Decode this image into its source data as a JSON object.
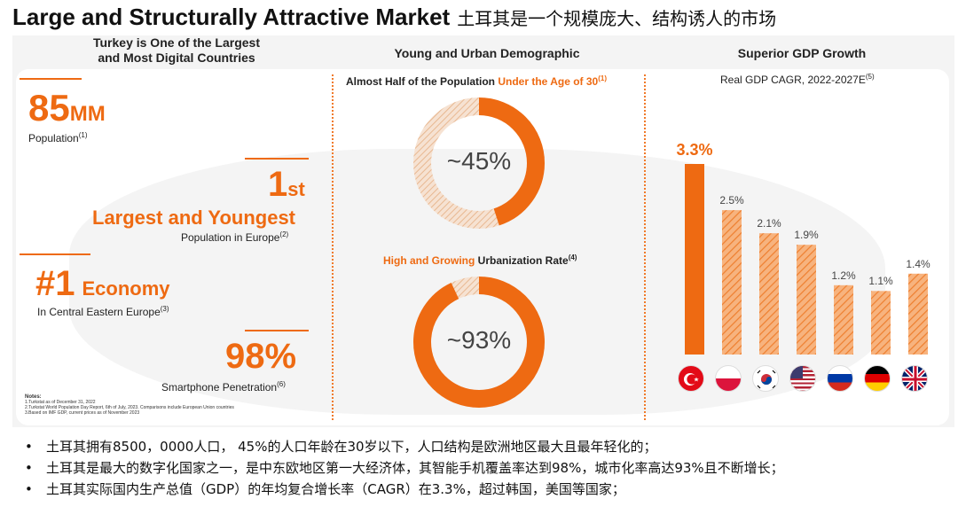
{
  "title": {
    "en": "Large and Structurally Attractive Market",
    "cn": "土耳其是一个规模庞大、结构诱人的市场"
  },
  "left": {
    "heading_line1": "Turkey is One of the Largest",
    "heading_line2": "and Most Digital Countries",
    "stat1": {
      "value": "85",
      "unit": "MM",
      "label": "Population",
      "note": "(1)"
    },
    "stat2": {
      "value": "1",
      "suffix": "st",
      "headline": "Largest and Youngest",
      "label": "Population in Europe",
      "note": "(2)"
    },
    "stat3": {
      "value": "#1",
      "headline": "Economy",
      "label": "In Central Eastern Europe",
      "note": "(3)"
    },
    "stat4": {
      "value": "98%",
      "label": "Smartphone Penetration",
      "note": "(6)"
    },
    "notes": {
      "title": "Notes:",
      "line1": "1.Turkstat as of December 31, 2022",
      "line2": "2.Turkstat World Population Day Report, 6th of July, 2023. Comparisons include European Union countries",
      "line3": "3.Based on IMF GDP, current prices as of November 2023"
    }
  },
  "middle": {
    "heading": "Young and Urban Demographic",
    "donut1": {
      "title_plain": "Almost Half of the Population ",
      "title_hl": "Under the Age of 30",
      "note": "(1)",
      "label": "~45%",
      "value": 45
    },
    "donut2": {
      "title_hl": "High and Growing",
      "title_plain": " Urbanization Rate",
      "note": "(4)",
      "label": "~93%",
      "value": 93
    }
  },
  "right": {
    "heading": "Superior GDP Growth",
    "subtitle": "Real GDP CAGR, 2022-2027E",
    "note": "(5)",
    "flag_icons": [
      "turkey-flag-icon",
      "poland-flag-icon",
      "south-korea-flag-icon",
      "usa-flag-icon",
      "russia-flag-icon",
      "germany-flag-icon",
      "uk-flag-icon"
    ]
  },
  "chart_data": {
    "type": "bar",
    "title": "Real GDP CAGR, 2022-2027E",
    "categories": [
      "Turkey",
      "Poland",
      "South Korea",
      "United States",
      "Russia",
      "Germany",
      "United Kingdom"
    ],
    "values": [
      3.3,
      2.5,
      2.1,
      1.9,
      1.2,
      1.1,
      1.4
    ],
    "labels": [
      "3.3%",
      "2.5%",
      "2.1%",
      "1.9%",
      "1.2%",
      "1.1%",
      "1.4%"
    ],
    "ylim": [
      0,
      3.3
    ],
    "colors": {
      "highlight": "#ee6a12",
      "other": "#f3a56b"
    }
  },
  "bullets": [
    "土耳其拥有8500，0000人口， 45%的人口年龄在30岁以下，人口结构是欧洲地区最大且最年轻化的；",
    "土耳其是最大的数字化国家之一，是中东欧地区第一大经济体，其智能手机覆盖率达到98%，城市化率高达93%且不断增长；",
    "土耳其实际国内生产总值（GDP）的年均复合增长率（CAGR）在3.3%，超过韩国，美国等国家；"
  ],
  "colors": {
    "accent": "#ee6a12",
    "accent_light": "#f3a56b",
    "panel_bg": "#f4f4f4"
  }
}
